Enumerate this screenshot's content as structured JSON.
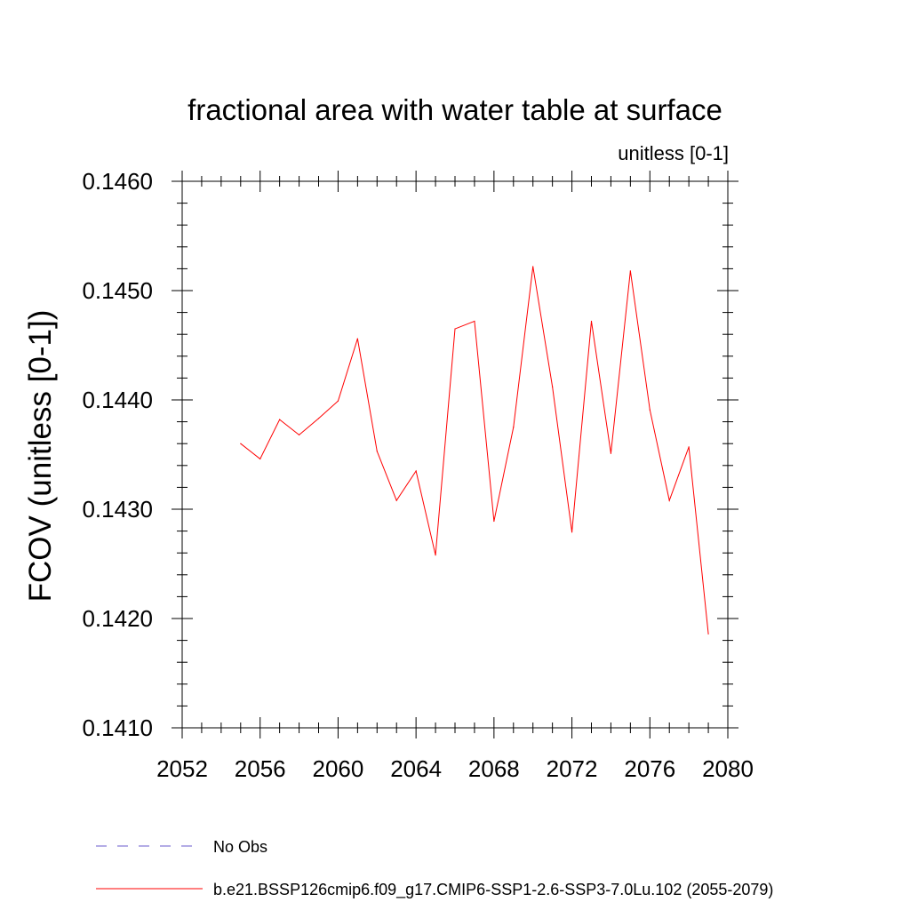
{
  "chart_data": {
    "type": "line",
    "title": "fractional area with water table at surface",
    "subtitle": "unitless [0-1]",
    "xlabel": "",
    "ylabel": "FCOV  (unitless [0-1])",
    "xlim": [
      2052,
      2080
    ],
    "ylim": [
      0.141,
      0.146
    ],
    "x_ticks": [
      2052,
      2056,
      2060,
      2064,
      2068,
      2072,
      2076,
      2080
    ],
    "x_tick_labels": [
      "2052",
      "2056",
      "2060",
      "2064",
      "2068",
      "2072",
      "2076",
      "2080"
    ],
    "y_ticks": [
      0.141,
      0.142,
      0.143,
      0.144,
      0.145,
      0.146
    ],
    "y_tick_labels": [
      "0.1410",
      "0.1420",
      "0.1430",
      "0.1440",
      "0.1450",
      "0.1460"
    ],
    "grid": false,
    "legend_position": "bottom",
    "series": [
      {
        "name": "b.e21.BSSP126cmip6.f09_g17.CMIP6-SSP1-2.6-SSP3-7.0Lu.102 (2055-2079)",
        "color": "#ff0000",
        "style": "solid",
        "x": [
          2055,
          2056,
          2057,
          2058,
          2059,
          2060,
          2061,
          2062,
          2063,
          2064,
          2065,
          2066,
          2067,
          2068,
          2069,
          2070,
          2071,
          2072,
          2073,
          2074,
          2075,
          2076,
          2077,
          2078,
          2079
        ],
        "y": [
          0.1436,
          0.14346,
          0.14382,
          0.14368,
          0.14383,
          0.14399,
          0.14456,
          0.14353,
          0.14308,
          0.14335,
          0.14258,
          0.14465,
          0.14472,
          0.14289,
          0.14375,
          0.14522,
          0.14412,
          0.14279,
          0.14472,
          0.14351,
          0.14518,
          0.14391,
          0.14308,
          0.14357,
          0.14186
        ]
      },
      {
        "name": "No Obs",
        "color": "#6a5acd",
        "style": "dashed",
        "x": [],
        "y": []
      }
    ]
  }
}
